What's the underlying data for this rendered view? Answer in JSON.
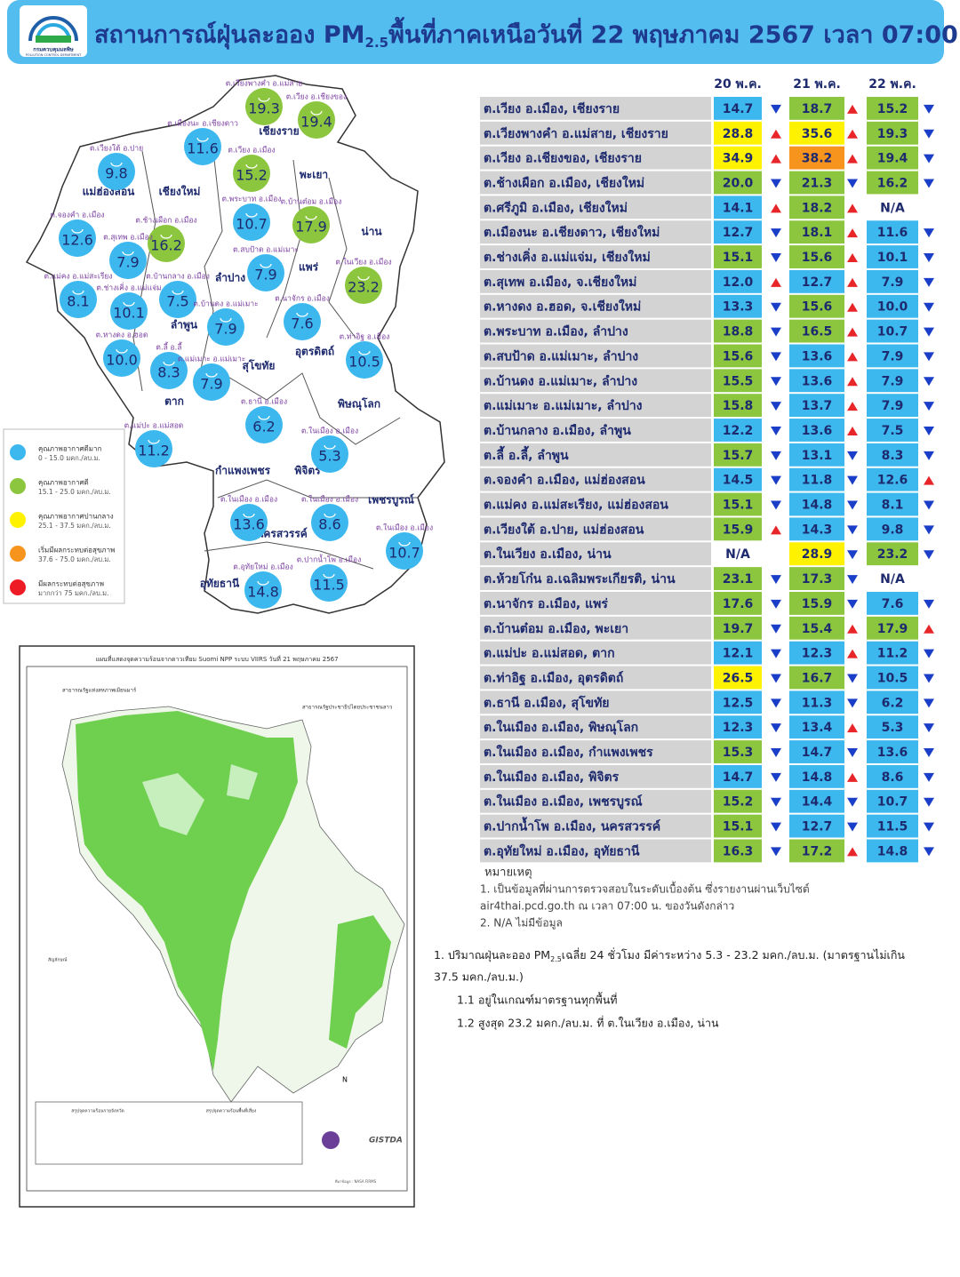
{
  "header": {
    "logo_name": "กรมควบคุมมลพิษ",
    "logo_name_en": "POLLUTION CONTROL DEPARTMENT",
    "title_prefix": "สถานการณ์ฝุ่นละออง PM",
    "title_sub": "2.5",
    "title_suffix": "พื้นที่ภาคเหนือวันที่ 22 พฤษภาคม 2567 เวลา 07:00 น."
  },
  "table": {
    "columns": [
      "20 พ.ค.",
      "21 พ.ค.",
      "22 พ.ค."
    ],
    "rows": [
      {
        "station": "ต.เวียง อ.เมือง, เชียงราย",
        "values": [
          "14.7",
          "18.7",
          "15.2"
        ],
        "colors": [
          "#3cb8ef",
          "#8cc63e",
          "#8cc63e"
        ],
        "trend": [
          "down",
          "up",
          "down"
        ]
      },
      {
        "station": "ต.เวียงพางคำ อ.แม่สาย, เชียงราย",
        "values": [
          "28.8",
          "35.6",
          "19.3"
        ],
        "colors": [
          "#fff200",
          "#fff200",
          "#8cc63e"
        ],
        "trend": [
          "up",
          "up",
          "down"
        ]
      },
      {
        "station": "ต.เวียง อ.เชียงของ, เชียงราย",
        "values": [
          "34.9",
          "38.2",
          "19.4"
        ],
        "colors": [
          "#fff200",
          "#f7941d",
          "#8cc63e"
        ],
        "trend": [
          "up",
          "up",
          "down"
        ]
      },
      {
        "station": "ต.ช้างเผือก อ.เมือง, เชียงใหม่",
        "values": [
          "20.0",
          "21.3",
          "16.2"
        ],
        "colors": [
          "#8cc63e",
          "#8cc63e",
          "#8cc63e"
        ],
        "trend": [
          "down",
          "down",
          "down"
        ]
      },
      {
        "station": "ต.ศรีภูมิ อ.เมือง, เชียงใหม่",
        "values": [
          "14.1",
          "18.2",
          "N/A"
        ],
        "colors": [
          "#3cb8ef",
          "#8cc63e",
          null
        ],
        "trend": [
          "up",
          "up",
          null
        ]
      },
      {
        "station": "ต.เมืองนะ อ.เชียงดาว, เชียงใหม่",
        "values": [
          "12.7",
          "18.1",
          "11.6"
        ],
        "colors": [
          "#3cb8ef",
          "#8cc63e",
          "#3cb8ef"
        ],
        "trend": [
          "down",
          "up",
          "down"
        ]
      },
      {
        "station": "ต.ช่างเคิ่ง อ.แม่แจ่ม, เชียงใหม่",
        "values": [
          "15.1",
          "15.6",
          "10.1"
        ],
        "colors": [
          "#8cc63e",
          "#8cc63e",
          "#3cb8ef"
        ],
        "trend": [
          "down",
          "up",
          "down"
        ]
      },
      {
        "station": "ต.สุเทพ  อ.เมือง, จ.เชียงใหม่",
        "values": [
          "12.0",
          "12.7",
          "7.9"
        ],
        "colors": [
          "#3cb8ef",
          "#3cb8ef",
          "#3cb8ef"
        ],
        "trend": [
          "up",
          "up",
          "down"
        ]
      },
      {
        "station": "ต.หางดง อ.ฮอด, จ.เชียงใหม่",
        "values": [
          "13.3",
          "15.6",
          "10.0"
        ],
        "colors": [
          "#3cb8ef",
          "#8cc63e",
          "#3cb8ef"
        ],
        "trend": [
          "down",
          "up",
          "down"
        ]
      },
      {
        "station": "ต.พระบาท อ.เมือง, ลำปาง",
        "values": [
          "18.8",
          "16.5",
          "10.7"
        ],
        "colors": [
          "#8cc63e",
          "#8cc63e",
          "#3cb8ef"
        ],
        "trend": [
          "down",
          "up",
          "down"
        ]
      },
      {
        "station": "ต.สบป้าด อ.แม่เมาะ, ลำปาง",
        "values": [
          "15.6",
          "13.6",
          "7.9"
        ],
        "colors": [
          "#8cc63e",
          "#3cb8ef",
          "#3cb8ef"
        ],
        "trend": [
          "down",
          "up",
          "down"
        ]
      },
      {
        "station": "ต.บ้านดง อ.แม่เมาะ, ลำปาง",
        "values": [
          "15.5",
          "13.6",
          "7.9"
        ],
        "colors": [
          "#8cc63e",
          "#3cb8ef",
          "#3cb8ef"
        ],
        "trend": [
          "down",
          "up",
          "down"
        ]
      },
      {
        "station": "ต.แม่เมาะ อ.แม่เมาะ, ลำปาง",
        "values": [
          "15.8",
          "13.7",
          "7.9"
        ],
        "colors": [
          "#8cc63e",
          "#3cb8ef",
          "#3cb8ef"
        ],
        "trend": [
          "down",
          "up",
          "down"
        ]
      },
      {
        "station": "ต.บ้านกลาง อ.เมือง, ลำพูน",
        "values": [
          "12.2",
          "13.6",
          "7.5"
        ],
        "colors": [
          "#3cb8ef",
          "#3cb8ef",
          "#3cb8ef"
        ],
        "trend": [
          "down",
          "up",
          "down"
        ]
      },
      {
        "station": "ต.ลี้ อ.ลี้, ลำพูน",
        "values": [
          "15.7",
          "13.1",
          "8.3"
        ],
        "colors": [
          "#8cc63e",
          "#3cb8ef",
          "#3cb8ef"
        ],
        "trend": [
          "down",
          "down",
          "down"
        ]
      },
      {
        "station": "ต.จองคำ อ.เมือง, แม่ฮ่องสอน",
        "values": [
          "14.5",
          "11.8",
          "12.6"
        ],
        "colors": [
          "#3cb8ef",
          "#3cb8ef",
          "#3cb8ef"
        ],
        "trend": [
          "down",
          "down",
          "up"
        ]
      },
      {
        "station": "ต.แม่คง อ.แม่สะเรียง, แม่ฮ่องสอน",
        "values": [
          "15.1",
          "14.8",
          "8.1"
        ],
        "colors": [
          "#8cc63e",
          "#3cb8ef",
          "#3cb8ef"
        ],
        "trend": [
          "down",
          "down",
          "down"
        ]
      },
      {
        "station": "ต.เวียงใต้ อ.ปาย, แม่ฮ่องสอน",
        "values": [
          "15.9",
          "14.3",
          "9.8"
        ],
        "colors": [
          "#8cc63e",
          "#3cb8ef",
          "#3cb8ef"
        ],
        "trend": [
          "up",
          "down",
          "down"
        ]
      },
      {
        "station": "ต.ในเวียง อ.เมือง, น่าน",
        "values": [
          "N/A",
          "28.9",
          "23.2"
        ],
        "colors": [
          null,
          "#fff200",
          "#8cc63e"
        ],
        "trend": [
          null,
          "down",
          "down"
        ]
      },
      {
        "station": "ต.ห้วยโก๋น อ.เฉลิมพระเกียรติ, น่าน",
        "values": [
          "23.1",
          "17.3",
          "N/A"
        ],
        "colors": [
          "#8cc63e",
          "#8cc63e",
          null
        ],
        "trend": [
          "down",
          "down",
          null
        ]
      },
      {
        "station": "ต.นาจักร อ.เมือง, แพร่",
        "values": [
          "17.6",
          "15.9",
          "7.6"
        ],
        "colors": [
          "#8cc63e",
          "#8cc63e",
          "#3cb8ef"
        ],
        "trend": [
          "down",
          "down",
          "down"
        ]
      },
      {
        "station": "ต.บ้านต๋อม อ.เมือง, พะเยา",
        "values": [
          "19.7",
          "15.4",
          "17.9"
        ],
        "colors": [
          "#8cc63e",
          "#8cc63e",
          "#8cc63e"
        ],
        "trend": [
          "down",
          "up",
          "up"
        ]
      },
      {
        "station": "ต.แม่ปะ อ.แม่สอด, ตาก",
        "values": [
          "12.1",
          "12.3",
          "11.2"
        ],
        "colors": [
          "#3cb8ef",
          "#3cb8ef",
          "#3cb8ef"
        ],
        "trend": [
          "down",
          "up",
          "down"
        ]
      },
      {
        "station": "ต.ท่าอิฐ อ.เมือง, อุตรดิตถ์",
        "values": [
          "26.5",
          "16.7",
          "10.5"
        ],
        "colors": [
          "#fff200",
          "#8cc63e",
          "#3cb8ef"
        ],
        "trend": [
          "down",
          "down",
          "down"
        ]
      },
      {
        "station": "ต.ธานี อ.เมือง, สุโขทัย",
        "values": [
          "12.5",
          "11.3",
          "6.2"
        ],
        "colors": [
          "#3cb8ef",
          "#3cb8ef",
          "#3cb8ef"
        ],
        "trend": [
          "down",
          "down",
          "down"
        ]
      },
      {
        "station": "ต.ในเมือง อ.เมือง, พิษณุโลก",
        "values": [
          "12.3",
          "13.4",
          "5.3"
        ],
        "colors": [
          "#3cb8ef",
          "#3cb8ef",
          "#3cb8ef"
        ],
        "trend": [
          "down",
          "up",
          "down"
        ]
      },
      {
        "station": "ต.ในเมือง อ.เมือง, กำแพงเพชร",
        "values": [
          "15.3",
          "14.7",
          "13.6"
        ],
        "colors": [
          "#8cc63e",
          "#3cb8ef",
          "#3cb8ef"
        ],
        "trend": [
          "down",
          "down",
          "down"
        ]
      },
      {
        "station": "ต.ในเมือง อ.เมือง, พิจิตร",
        "values": [
          "14.7",
          "14.8",
          "8.6"
        ],
        "colors": [
          "#3cb8ef",
          "#3cb8ef",
          "#3cb8ef"
        ],
        "trend": [
          "down",
          "up",
          "down"
        ]
      },
      {
        "station": "ต.ในเมือง อ.เมือง, เพชรบูรณ์",
        "values": [
          "15.2",
          "14.4",
          "10.7"
        ],
        "colors": [
          "#8cc63e",
          "#3cb8ef",
          "#3cb8ef"
        ],
        "trend": [
          "down",
          "down",
          "down"
        ]
      },
      {
        "station": "ต.ปากน้ำโพ อ.เมือง, นครสวรรค์",
        "values": [
          "15.1",
          "12.7",
          "11.5"
        ],
        "colors": [
          "#8cc63e",
          "#3cb8ef",
          "#3cb8ef"
        ],
        "trend": [
          "down",
          "down",
          "down"
        ]
      },
      {
        "station": "ต.อุทัยใหม่ อ.เมือง, อุทัยธานี",
        "values": [
          "16.3",
          "17.2",
          "14.8"
        ],
        "colors": [
          "#8cc63e",
          "#8cc63e",
          "#3cb8ef"
        ],
        "trend": [
          "down",
          "up",
          "down"
        ]
      }
    ]
  },
  "notes": {
    "title": "หมายเหตุ",
    "lines": [
      "1. เป็นข้อมูลที่ผ่านการตรวจสอบในระดับเบื้องต้น ซึ่งรายงานผ่านเว็บไซต์",
      "air4thai.pcd.go.th ณ เวลา 07:00 น. ของวันดังกล่าว",
      "2. N/A ไม่มีข้อมูล"
    ]
  },
  "summary": {
    "line1_prefix": "1. ปริมาณฝุ่นละออง PM",
    "line1_sub": "2.5",
    "line1_suffix": "เฉลี่ย 24 ชั่วโมง มีค่าระหว่าง 5.3 - 23.2 มคก./ลบ.ม. (มาตรฐานไม่เกิน",
    "line1_cont": "37.5 มคก./ลบ.ม.)",
    "items": [
      "1.1 อยู่ในเกณฑ์มาตรฐานทุกพื้นที่",
      "1.2 สูงสุด 23.2 มคก./ลบ.ม. ที่ ต.ในเวียง อ.เมือง, น่าน"
    ]
  },
  "legend": [
    {
      "title": "คุณภาพอากาศดีมาก",
      "range": "0 - 15.0 มคก./ลบ.ม.",
      "color": "#3cb8ef"
    },
    {
      "title": "คุณภาพอากาศดี",
      "range": "15.1 - 25.0 มคก./ลบ.ม.",
      "color": "#8cc63e"
    },
    {
      "title": "คุณภาพอากาศปานกลาง",
      "range": "25.1 - 37.5 มคก./ลบ.ม.",
      "color": "#fff200"
    },
    {
      "title": "เริ่มมีผลกระทบต่อสุขภาพ",
      "range": "37.6 - 75.0 มคก./ลบ.ม.",
      "color": "#f7941d"
    },
    {
      "title": "มีผลกระทบต่อสุขภาพ",
      "range": "มากกว่า 75 มคก./ลบ.ม.",
      "color": "#ed1c24"
    }
  ],
  "map": {
    "provinces": [
      "เชียงราย",
      "พะเยา",
      "น่าน",
      "แม่ฮ่องสอน",
      "เชียงใหม่",
      "ลำปาง",
      "แพร่",
      "ลำพูน",
      "อุตรดิตถ์",
      "สุโขทัย",
      "ตาก",
      "พิษณุโลก",
      "กำแพงเพชร",
      "พิจิตร",
      "เพชรบูรณ์",
      "นครสวรรค์",
      "อุทัยธานี"
    ],
    "bubbles": [
      {
        "label": "ต.เวียงพางคำ อ.แม่สาย",
        "value": "19.3",
        "color": "#8cc63e"
      },
      {
        "label": "ต.เวียง อ.เชียงของ",
        "value": "19.4",
        "color": "#8cc63e"
      },
      {
        "label": "ต.เมืองนะ อ.เชียงดาว",
        "value": "11.6",
        "color": "#3cb8ef"
      },
      {
        "label": "ต.เวียงใต้ อ.ปาย",
        "value": "9.8",
        "color": "#3cb8ef"
      },
      {
        "label": "ต.เวียง อ.เมือง",
        "value": "15.2",
        "color": "#8cc63e"
      },
      {
        "label": "ต.พระบาท อ.เมือง",
        "value": "10.7",
        "color": "#3cb8ef"
      },
      {
        "label": "ต.บ้านต๋อม อ.เมือง",
        "value": "17.9",
        "color": "#8cc63e"
      },
      {
        "label": "ต.จองคำ อ.เมือง",
        "value": "12.6",
        "color": "#3cb8ef"
      },
      {
        "label": "ต.ช้างเผือก อ.เมือง",
        "value": "16.2",
        "color": "#8cc63e"
      },
      {
        "label": "ต.สุเทพ อ.เมือง",
        "value": "7.9",
        "color": "#3cb8ef"
      },
      {
        "label": "ต.สบป้าด อ.แม่เมาะ",
        "value": "7.9",
        "color": "#3cb8ef"
      },
      {
        "label": "ต.ในเวียง อ.เมือง",
        "value": "23.2",
        "color": "#8cc63e"
      },
      {
        "label": "ต.แม่คง อ.แม่สะเรียง",
        "value": "8.1",
        "color": "#3cb8ef"
      },
      {
        "label": "ต.บ้านกลาง อ.เมือง",
        "value": "7.5",
        "color": "#3cb8ef"
      },
      {
        "label": "ต.ช่างเคิ่ง อ.แม่แจ่ม",
        "value": "10.1",
        "color": "#3cb8ef"
      },
      {
        "label": "ต.นาจักร อ.เมือง",
        "value": "7.6",
        "color": "#3cb8ef"
      },
      {
        "label": "ต.บ้านดง อ.แม่เมาะ",
        "value": "7.9",
        "color": "#3cb8ef"
      },
      {
        "label": "ต.หางดง อ.ฮอด",
        "value": "10.0",
        "color": "#3cb8ef"
      },
      {
        "label": "ต.ลี้ อ.ลี้",
        "value": "8.3",
        "color": "#3cb8ef"
      },
      {
        "label": "ต.ท่าอิฐ อ.เมือง",
        "value": "10.5",
        "color": "#3cb8ef"
      },
      {
        "label": "ต.แม่เมาะ อ.แม่เมาะ",
        "value": "7.9",
        "color": "#3cb8ef"
      },
      {
        "label": "ต.ธานี อ.เมือง",
        "value": "6.2",
        "color": "#3cb8ef"
      },
      {
        "label": "ต.แม่ปะ อ.แม่สอด",
        "value": "11.2",
        "color": "#3cb8ef"
      },
      {
        "label": "ต.ในเมือง อ.เมือง",
        "value": "5.3",
        "color": "#3cb8ef"
      },
      {
        "label": "ต.ในเมือง อ.เมือง",
        "value": "13.6",
        "color": "#3cb8ef"
      },
      {
        "label": "ต.ในเมือง อ.เมือง",
        "value": "8.6",
        "color": "#3cb8ef"
      },
      {
        "label": "ต.ในเมือง อ.เมือง",
        "value": "10.7",
        "color": "#3cb8ef"
      },
      {
        "label": "ต.อุทัยใหม่ อ.เมือง",
        "value": "14.8",
        "color": "#3cb8ef"
      },
      {
        "label": "ต.ปากน้ำโพ อ.เมือง",
        "value": "11.5",
        "color": "#3cb8ef"
      }
    ]
  },
  "fire_map": {
    "title": "แผนที่แสดงจุดความร้อนจากดาวเทียม Suomi NPP ระบบ VIIRS  วันที่ 21 พฤษภาคม 2567",
    "myanmar": "สาธารณรัฐแห่งสหภาพเมียนมาร์",
    "laos": "สาธารณรัฐประชาธิปไตยประชาชนลาว",
    "legend_title": "สัญลักษณ์",
    "summary_province": "สรุปจุดความร้อนรายจังหวัด",
    "summary_risk": "สรุปจุดความร้อนพื้นที่เสี่ยง",
    "north": "N",
    "agency": "GISTDA",
    "source": "ที่มาข้อมูล : NASA FIRMS"
  }
}
